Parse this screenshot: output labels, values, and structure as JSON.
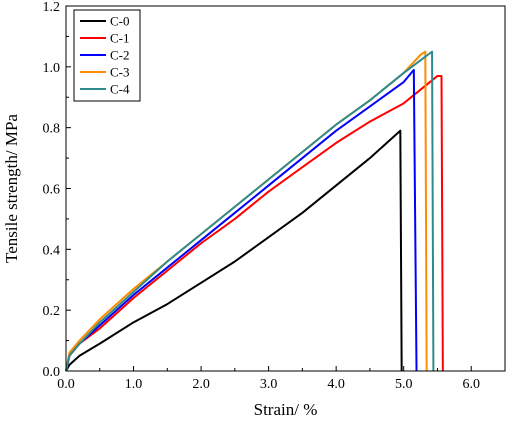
{
  "chart_data": {
    "type": "line",
    "xlabel": "Strain/ %",
    "ylabel": "Tensile strength/ MPa",
    "xlim": [
      0,
      6.5
    ],
    "ylim": [
      0,
      1.2
    ],
    "x_ticks": [
      0.0,
      1.0,
      2.0,
      3.0,
      4.0,
      5.0,
      6.0
    ],
    "x_tick_labels": [
      "0.0",
      "1.0",
      "2.0",
      "3.0",
      "4.0",
      "5.0",
      "6.0"
    ],
    "y_ticks": [
      0.0,
      0.2,
      0.4,
      0.6,
      0.8,
      1.0,
      1.2
    ],
    "y_tick_labels": [
      "0.0",
      "0.2",
      "0.4",
      "0.6",
      "0.8",
      "1.0",
      "1.2"
    ],
    "grid": false,
    "legend_position": "top-left",
    "series": [
      {
        "name": "C-0",
        "color": "#000000",
        "points": [
          [
            0,
            0
          ],
          [
            0.05,
            0.02
          ],
          [
            0.2,
            0.05
          ],
          [
            0.5,
            0.09
          ],
          [
            1.0,
            0.16
          ],
          [
            1.5,
            0.22
          ],
          [
            2.0,
            0.29
          ],
          [
            2.5,
            0.36
          ],
          [
            3.0,
            0.44
          ],
          [
            3.5,
            0.52
          ],
          [
            4.0,
            0.61
          ],
          [
            4.5,
            0.7
          ],
          [
            4.9,
            0.78
          ],
          [
            4.95,
            0.79
          ],
          [
            4.97,
            0.0
          ]
        ]
      },
      {
        "name": "C-1",
        "color": "#ff0000",
        "points": [
          [
            0,
            0
          ],
          [
            0.05,
            0.05
          ],
          [
            0.2,
            0.09
          ],
          [
            0.5,
            0.14
          ],
          [
            1.0,
            0.24
          ],
          [
            1.5,
            0.33
          ],
          [
            2.0,
            0.42
          ],
          [
            2.5,
            0.5
          ],
          [
            3.0,
            0.59
          ],
          [
            3.5,
            0.67
          ],
          [
            4.0,
            0.75
          ],
          [
            4.5,
            0.82
          ],
          [
            5.0,
            0.88
          ],
          [
            5.5,
            0.97
          ],
          [
            5.56,
            0.97
          ],
          [
            5.58,
            0.0
          ]
        ]
      },
      {
        "name": "C-2",
        "color": "#0000ff",
        "points": [
          [
            0,
            0
          ],
          [
            0.05,
            0.05
          ],
          [
            0.2,
            0.09
          ],
          [
            0.5,
            0.15
          ],
          [
            1.0,
            0.25
          ],
          [
            1.5,
            0.34
          ],
          [
            2.0,
            0.43
          ],
          [
            2.5,
            0.52
          ],
          [
            3.0,
            0.61
          ],
          [
            3.5,
            0.7
          ],
          [
            4.0,
            0.79
          ],
          [
            4.5,
            0.87
          ],
          [
            5.0,
            0.95
          ],
          [
            5.15,
            0.99
          ],
          [
            5.19,
            0.0
          ]
        ]
      },
      {
        "name": "C-3",
        "color": "#ff8c00",
        "points": [
          [
            0,
            0
          ],
          [
            0.05,
            0.06
          ],
          [
            0.2,
            0.1
          ],
          [
            0.5,
            0.17
          ],
          [
            1.0,
            0.27
          ],
          [
            1.5,
            0.36
          ],
          [
            2.0,
            0.45
          ],
          [
            2.5,
            0.54
          ],
          [
            3.0,
            0.63
          ],
          [
            3.5,
            0.72
          ],
          [
            4.0,
            0.81
          ],
          [
            4.5,
            0.89
          ],
          [
            5.0,
            0.98
          ],
          [
            5.25,
            1.04
          ],
          [
            5.32,
            1.05
          ],
          [
            5.34,
            0.0
          ]
        ]
      },
      {
        "name": "C-4",
        "color": "#2e8b8b",
        "points": [
          [
            0,
            0
          ],
          [
            0.05,
            0.05
          ],
          [
            0.2,
            0.09
          ],
          [
            0.5,
            0.16
          ],
          [
            1.0,
            0.26
          ],
          [
            1.5,
            0.36
          ],
          [
            2.0,
            0.45
          ],
          [
            2.5,
            0.54
          ],
          [
            3.0,
            0.63
          ],
          [
            3.5,
            0.72
          ],
          [
            4.0,
            0.81
          ],
          [
            4.5,
            0.89
          ],
          [
            5.0,
            0.98
          ],
          [
            5.3,
            1.03
          ],
          [
            5.42,
            1.05
          ],
          [
            5.44,
            0.0
          ]
        ]
      }
    ]
  }
}
